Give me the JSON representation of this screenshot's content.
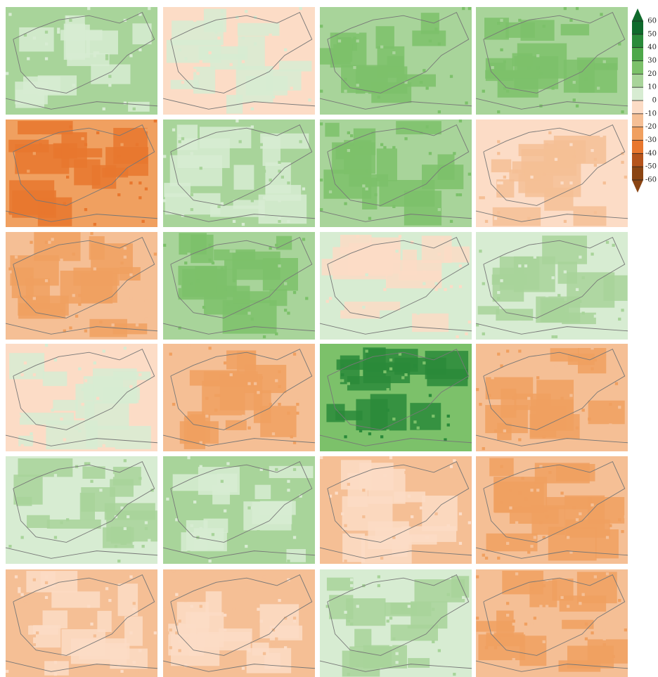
{
  "colorbar": {
    "levels": [
      60,
      50,
      40,
      30,
      20,
      10,
      0,
      -10,
      -20,
      -30,
      -40,
      -50,
      -60
    ],
    "colors": [
      "#0f6a2c",
      "#2a8a3a",
      "#4ea84a",
      "#7cc16a",
      "#a8d49a",
      "#d7ecd2",
      "#fcdcc6",
      "#f5bf95",
      "#f0a060",
      "#e8772e",
      "#b5541c",
      "#8b4513"
    ]
  }
}
